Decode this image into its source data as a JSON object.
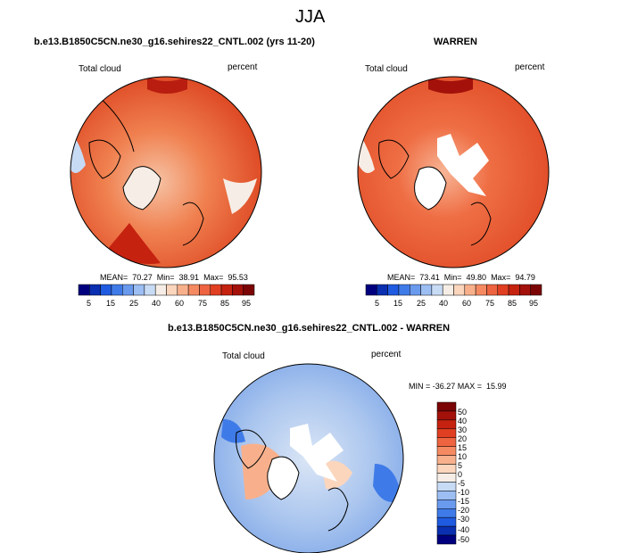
{
  "season_title": "JJA",
  "colors": {
    "bar_ramp": [
      "#00007f",
      "#0a2fb0",
      "#1f5be0",
      "#3f7be8",
      "#6a9aee",
      "#9cbef2",
      "#c8dbf5",
      "#f6eee6",
      "#fbd6bd",
      "#f8b08c",
      "#f58a62",
      "#ee6440",
      "#e03f22",
      "#c62210",
      "#a3110a",
      "#7b0505"
    ],
    "land_line": "#000000",
    "missing": "#ffffff"
  },
  "chart_data": [
    {
      "type": "polar-map",
      "title": "b.e13.B1850C5CN.ne30_g16.sehires22_CNTL.002 (yrs 11-20)",
      "left_label": "Total cloud",
      "right_label": "percent",
      "stats_text": "MEAN=  70.27  Min=  38.91  Max=  95.53",
      "mean": 70.27,
      "min": 38.91,
      "max": 95.53,
      "colorbar_ticks": [
        "5",
        "15",
        "25",
        "40",
        "60",
        "75",
        "85",
        "95"
      ]
    },
    {
      "type": "polar-map",
      "title": "WARREN",
      "left_label": "Total cloud",
      "right_label": "percent",
      "stats_text": "MEAN=  73.41  Min=  49.80  Max=  94.79",
      "mean": 73.41,
      "min": 49.8,
      "max": 94.79,
      "colorbar_ticks": [
        "5",
        "15",
        "25",
        "40",
        "60",
        "75",
        "85",
        "95"
      ]
    },
    {
      "type": "polar-map-difference",
      "title": "b.e13.B1850C5CN.ne30_g16.sehires22_CNTL.002 - WARREN",
      "left_label": "Total cloud",
      "right_label": "percent",
      "stats_text": "MIN = -36.27 MAX =  15.99",
      "min": -36.27,
      "max": 15.99,
      "colorbar_ticks": [
        "50",
        "40",
        "30",
        "20",
        "15",
        "10",
        "5",
        "0",
        "-5",
        "-10",
        "-15",
        "-20",
        "-30",
        "-40",
        "-50"
      ]
    }
  ]
}
